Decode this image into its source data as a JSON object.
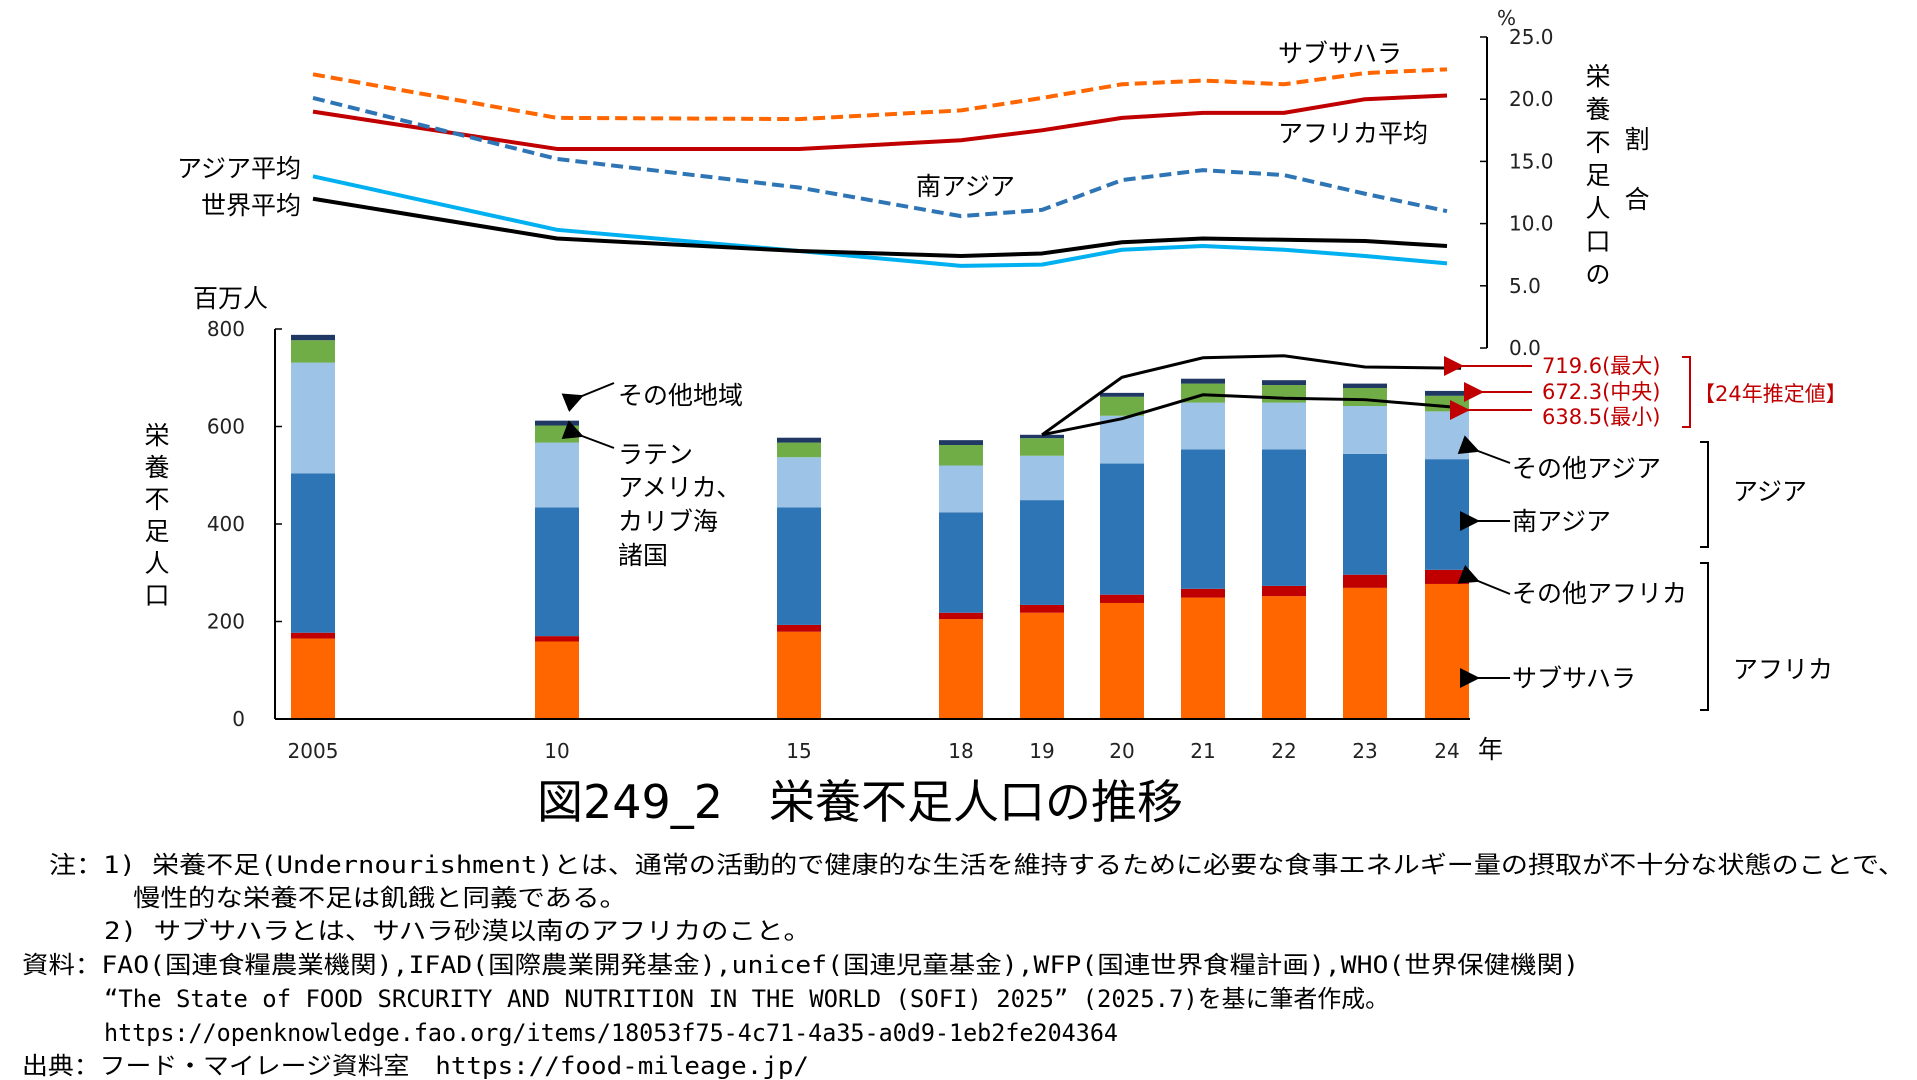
{
  "chart_data": [
    {
      "type": "line",
      "ylabel": "栄養不足人口の割合",
      "yunit": "%",
      "ylim": [
        0,
        25
      ],
      "yticks": [
        "0.0",
        "5.0",
        "10.0",
        "15.0",
        "20.0",
        "25.0"
      ],
      "x": [
        "2005",
        "10",
        "15",
        "18",
        "19",
        "20",
        "21",
        "22",
        "23",
        "24"
      ],
      "series": [
        {
          "name": "サブサハラ",
          "style": "dashed",
          "color": "#ff6600",
          "values": [
            22.0,
            18.5,
            18.4,
            19.1,
            20.1,
            21.2,
            21.5,
            21.2,
            22.1,
            22.4
          ]
        },
        {
          "name": "アフリカ平均",
          "style": "solid",
          "color": "#c00000",
          "values": [
            19.0,
            16.0,
            16.0,
            16.7,
            17.5,
            18.5,
            18.9,
            18.9,
            20.0,
            20.3
          ]
        },
        {
          "name": "南アジア",
          "style": "dashed",
          "color": "#2e75b6",
          "values": [
            20.1,
            15.2,
            12.9,
            10.6,
            11.1,
            13.5,
            14.3,
            13.9,
            12.4,
            11.0
          ]
        },
        {
          "name": "アジア平均",
          "style": "solid",
          "color": "#00b0f0",
          "values": [
            13.8,
            9.5,
            7.8,
            6.6,
            6.7,
            7.9,
            8.2,
            7.9,
            7.4,
            6.8
          ]
        },
        {
          "name": "世界平均",
          "style": "solid",
          "color": "#000000",
          "values": [
            12.0,
            8.8,
            7.8,
            7.4,
            7.6,
            8.5,
            8.8,
            8.7,
            8.6,
            8.2
          ]
        }
      ]
    },
    {
      "type": "bar",
      "stacked": true,
      "ylabel": "栄養不足人口",
      "yunit": "百万人",
      "ylim": [
        0,
        800
      ],
      "yticks": [
        "0",
        "200",
        "400",
        "600",
        "800"
      ],
      "categories": [
        "2005",
        "10",
        "15",
        "18",
        "19",
        "20",
        "21",
        "22",
        "23",
        "24"
      ],
      "xunit": "年",
      "series": [
        {
          "name": "サブサハラ",
          "color": "#ff6600",
          "values": [
            165,
            159,
            179,
            205,
            218,
            238,
            249,
            252,
            269,
            277
          ]
        },
        {
          "name": "その他アフリカ",
          "color": "#c00000",
          "values": [
            12,
            11,
            14,
            13,
            16,
            17,
            18,
            21,
            27,
            29
          ]
        },
        {
          "name": "南アジア",
          "color": "#2e75b6",
          "values": [
            327,
            264,
            241,
            206,
            215,
            269,
            286,
            280,
            248,
            227
          ]
        },
        {
          "name": "その他アジア",
          "color": "#9dc3e6",
          "values": [
            227,
            133,
            103,
            96,
            91,
            98,
            96,
            96,
            98,
            98
          ]
        },
        {
          "name": "ラテンアメリカ、カリブ海諸国",
          "color": "#70ad47",
          "values": [
            46,
            35,
            30,
            42,
            36,
            39,
            39,
            36,
            37,
            32
          ]
        },
        {
          "name": "その他地域",
          "color": "#1f3864",
          "values": [
            11,
            10,
            10,
            10,
            7,
            8,
            10,
            10,
            9,
            10
          ]
        }
      ],
      "range": {
        "categories": [
          "19",
          "20",
          "21",
          "22",
          "23",
          "24"
        ],
        "max": [
          583,
          701,
          741,
          745,
          722,
          719.6
        ],
        "min": [
          583,
          616,
          665,
          658,
          655,
          638.5
        ]
      },
      "groups": {
        "asia": "アジア",
        "africa": "アフリカ"
      },
      "annotations": {
        "other_region": "その他地域",
        "latam_lines": [
          "ラテン",
          "アメリカ、",
          "カリブ海",
          "諸国"
        ],
        "other_asia": "その他アジア",
        "south_asia": "南アジア",
        "other_africa": "その他アフリカ",
        "subsahara": "サブサハラ"
      },
      "estimate": {
        "max_label": "719.6(最大)",
        "mid_label": "672.3(中央)",
        "min_label": "638.5(最小)",
        "tag": "【24年推定値】",
        "color": "#c00000"
      }
    }
  ],
  "title": "図249_2　栄養不足人口の推移",
  "notes": [
    "注：1) 栄養不足(Undernourishment)とは、通常の活動的で健康的な生活を維持するために必要な食事エネルギー量の摂取が不十分な状態のことで、",
    "慢性的な栄養不足は飢餓と同義である。",
    "2) サブサハラとは、サハラ砂漠以南のアフリカのこと。",
    "資料：FAO(国連食糧農業機関),IFAD(国際農業開発基金),unicef(国連児童基金),WFP(国連世界食糧計画),WHO(世界保健機関)",
    "“The State of FOOD SRCURITY AND NUTRITION IN THE WORLD (SOFI) 2025” (2025.7)を基に筆者作成。",
    "https://openknowledge.fao.org/items/18053f75-4c71-4a35-a0d9-1eb2fe204364",
    "出典：フード・マイレージ資料室　https://food-mileage.jp/"
  ]
}
